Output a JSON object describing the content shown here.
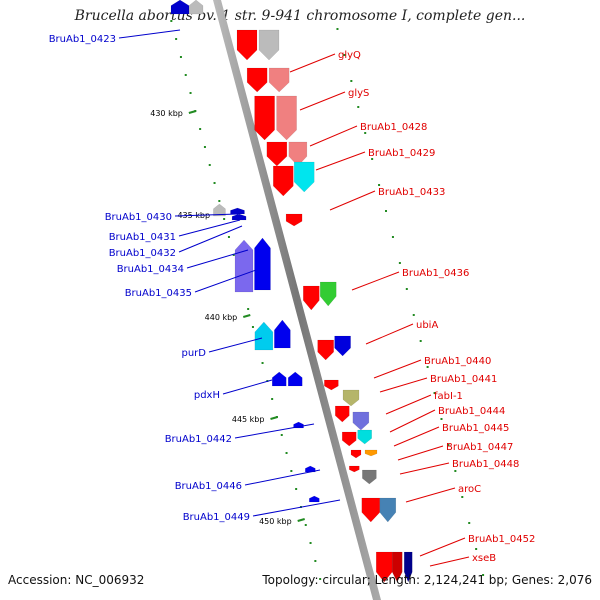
{
  "title": "Brucella abortus bv. 1 str. 9-941 chromosome I, complete gen...",
  "accession_label": "Accession: NC_006932",
  "topology_text": "Topology: circular; Length: 2,124,241 bp; Genes: 2,076",
  "scale_labels": [
    "430 kbp",
    "435 kbp",
    "440 kbp",
    "445 kbp",
    "450 kbp"
  ],
  "colors": {
    "forward_strand": "#e00000",
    "reverse_strand": "#0000cc",
    "backbone": "#888888",
    "tick": "#228b22"
  },
  "left_genes": [
    "BruAb1_0423",
    "BruAb1_0430",
    "BruAb1_0431",
    "BruAb1_0432",
    "BruAb1_0434",
    "BruAb1_0435",
    "purD",
    "pdxH",
    "BruAb1_0442",
    "BruAb1_0446",
    "BruAb1_0449"
  ],
  "right_genes": [
    "glyQ",
    "glyS",
    "BruAb1_0428",
    "BruAb1_0429",
    "BruAb1_0433",
    "BruAb1_0436",
    "ubiA",
    "BruAb1_0440",
    "BruAb1_0441",
    "fabI-1",
    "BruAb1_0444",
    "BruAb1_0445",
    "BruAb1_0447",
    "BruAb1_0448",
    "aroC",
    "BruAb1_0452",
    "xseB"
  ]
}
